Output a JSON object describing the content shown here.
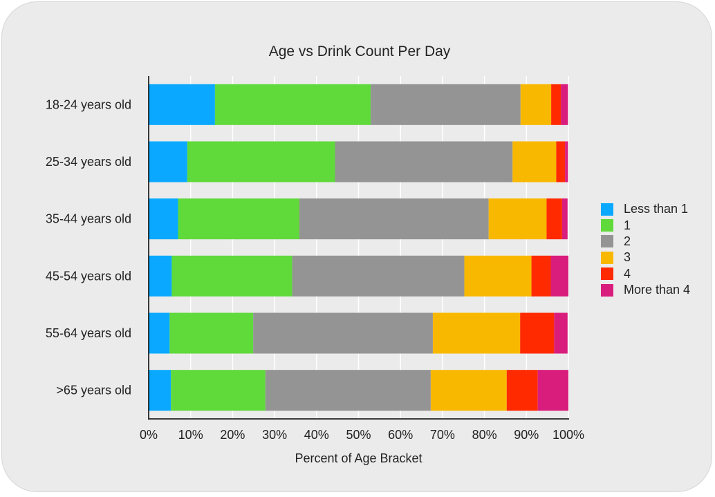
{
  "chart_data": {
    "type": "bar",
    "orientation": "horizontal",
    "stacked": true,
    "title": "Age vs Drink Count Per Day",
    "xlabel": "Percent of Age Bracket",
    "ylabel": "",
    "xlim": [
      0,
      100
    ],
    "x_ticks": [
      "0%",
      "10%",
      "20%",
      "30%",
      "40%",
      "50%",
      "60%",
      "70%",
      "80%",
      "90%",
      "100%"
    ],
    "grid": true,
    "legend_position": "right",
    "categories": [
      "18-24 years old",
      "25-34 years old",
      "35-44 years old",
      "45-54 years old",
      "55-64 years old",
      ">65 years old"
    ],
    "series": [
      {
        "name": "Less than 1",
        "color": "#0aa9ff",
        "values": [
          15.8,
          9.2,
          7.0,
          5.5,
          5.0,
          5.3
        ]
      },
      {
        "name": "1",
        "color": "#60d93b",
        "values": [
          37.1,
          35.2,
          28.9,
          28.7,
          19.9,
          22.5
        ]
      },
      {
        "name": "2",
        "color": "#949494",
        "values": [
          35.7,
          42.3,
          45.1,
          41.0,
          42.8,
          39.4
        ]
      },
      {
        "name": "3",
        "color": "#f9b800",
        "values": [
          7.3,
          10.4,
          13.8,
          16.0,
          20.8,
          18.1
        ]
      },
      {
        "name": "4",
        "color": "#ff2a00",
        "values": [
          2.3,
          2.1,
          3.7,
          4.6,
          8.1,
          7.4
        ]
      },
      {
        "name": "More than 4",
        "color": "#d91d7d",
        "values": [
          1.7,
          0.7,
          1.3,
          4.2,
          3.2,
          7.3
        ]
      }
    ]
  }
}
